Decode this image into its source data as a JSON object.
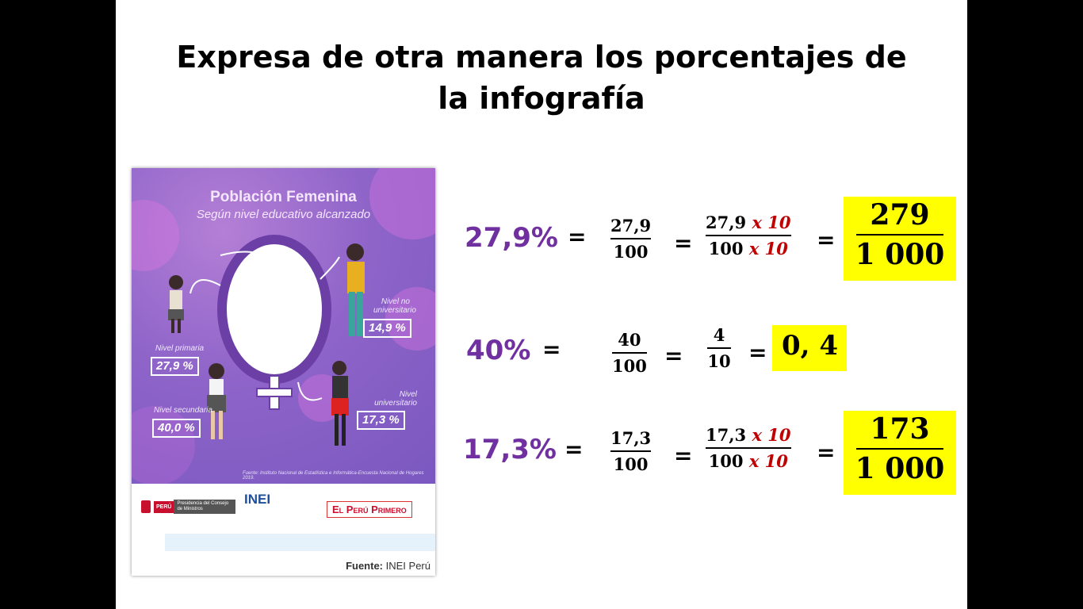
{
  "title_line1": "Expresa de otra manera los porcentajes de",
  "title_line2": "la infografía",
  "infographic": {
    "title": "Población Femenina",
    "subtitle": "Según nivel educativo alcanzado",
    "levels": [
      {
        "label": "Nivel primaria",
        "value": "27,9 %"
      },
      {
        "label": "Nivel secundaria",
        "value": "40,0 %"
      },
      {
        "label": "Nivel no universitario",
        "value": "14,9 %"
      },
      {
        "label": "Nivel universitario",
        "value": "17,3 %"
      }
    ],
    "source_small": "Fuente: Instituto Nacional de Estadística e Informática-Encuesta Nacional de Hogares 2019.",
    "logo_peru": "PERÚ",
    "logo_pcm": "Presidencia del Consejo de Ministros",
    "logo_inei": "INEI",
    "logo_peru_primero": "El Perú Primero",
    "fuente_label": "Fuente:",
    "fuente_value": "INEI Perú"
  },
  "rows": [
    {
      "percent": "27,9%",
      "eq": "=",
      "f1_num": "27,9",
      "f1_den": "100",
      "f2_num": "27,9",
      "f2_num_mult": "x 10",
      "f2_den": "100",
      "f2_den_mult": "x 10",
      "res_num": "279",
      "res_den": "1 000"
    },
    {
      "percent": "40%",
      "eq": "=",
      "f1_num": "40",
      "f1_den": "100",
      "f2_num": "4",
      "f2_den": "10",
      "result": "0, 4"
    },
    {
      "percent": "17,3%",
      "eq": "=",
      "f1_num": "17,3",
      "f1_den": "100",
      "f2_num": "17,3",
      "f2_num_mult": "x 10",
      "f2_den": "100",
      "f2_den_mult": "x 10",
      "res_num": "173",
      "res_den": "1 000"
    }
  ]
}
